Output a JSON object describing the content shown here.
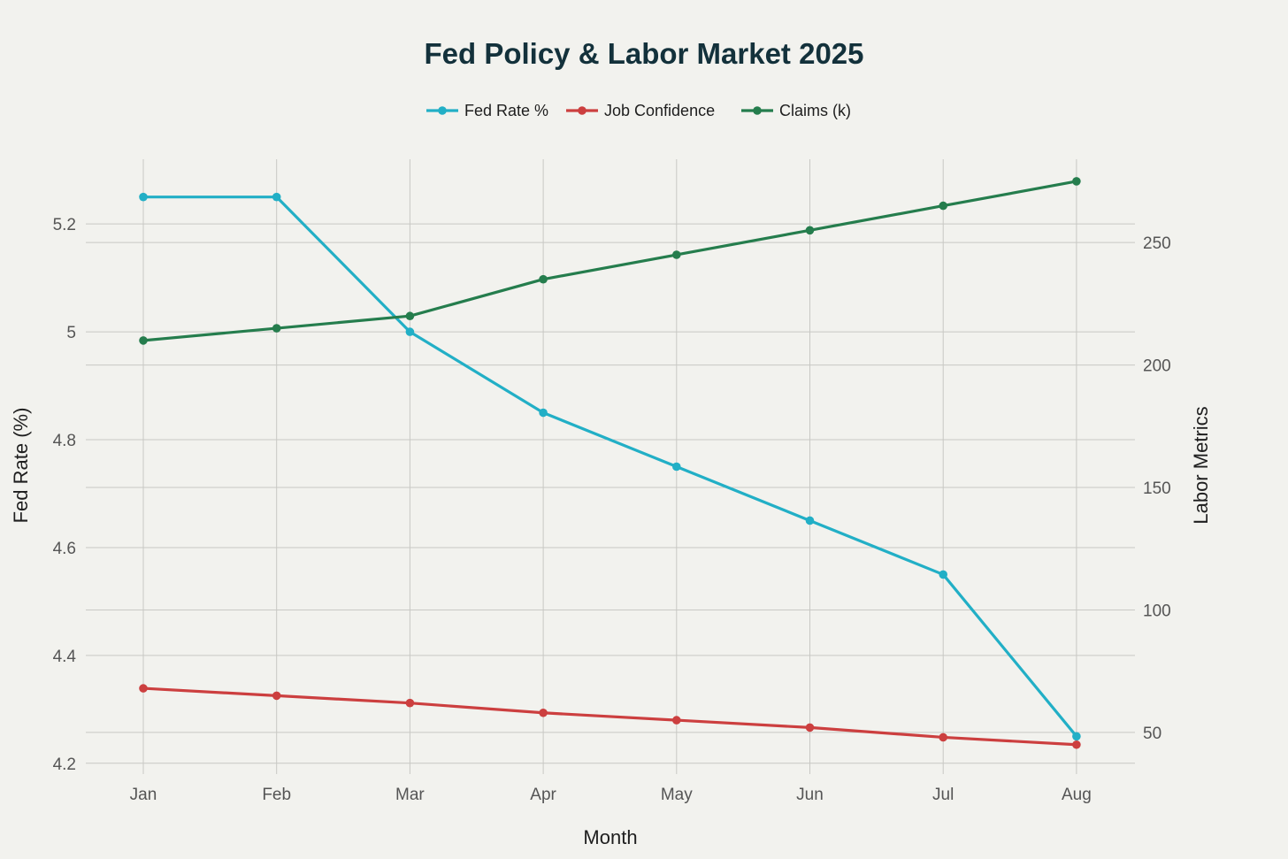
{
  "chart_data": {
    "type": "line",
    "title": "Fed Policy & Labor Market 2025",
    "xlabel": "Month",
    "ylabel_left": "Fed Rate (%)",
    "ylabel_right": "Labor Metrics",
    "categories": [
      "Jan",
      "Feb",
      "Mar",
      "Apr",
      "May",
      "Jun",
      "Jul",
      "Aug"
    ],
    "y_left": {
      "range": [
        4.18,
        5.32
      ],
      "ticks": [
        "4.2",
        "4.4",
        "4.6",
        "4.8",
        "5",
        "5.2"
      ]
    },
    "y_right": {
      "range": [
        33,
        284
      ],
      "ticks": [
        "50",
        "100",
        "150",
        "200",
        "250"
      ]
    },
    "series": [
      {
        "name": "Fed Rate %",
        "axis": "left",
        "color": "#22afc6",
        "values": [
          5.25,
          5.25,
          5.0,
          4.85,
          4.75,
          4.65,
          4.55,
          4.25
        ]
      },
      {
        "name": "Job Confidence",
        "axis": "right",
        "color": "#cc3f3f",
        "values": [
          68,
          65,
          62,
          58,
          55,
          52,
          48,
          45
        ]
      },
      {
        "name": "Claims (k)",
        "axis": "right",
        "color": "#257d4d",
        "values": [
          210,
          215,
          220,
          235,
          245,
          255,
          265,
          275
        ]
      }
    ],
    "grid": true,
    "legend_position": "top-center"
  }
}
